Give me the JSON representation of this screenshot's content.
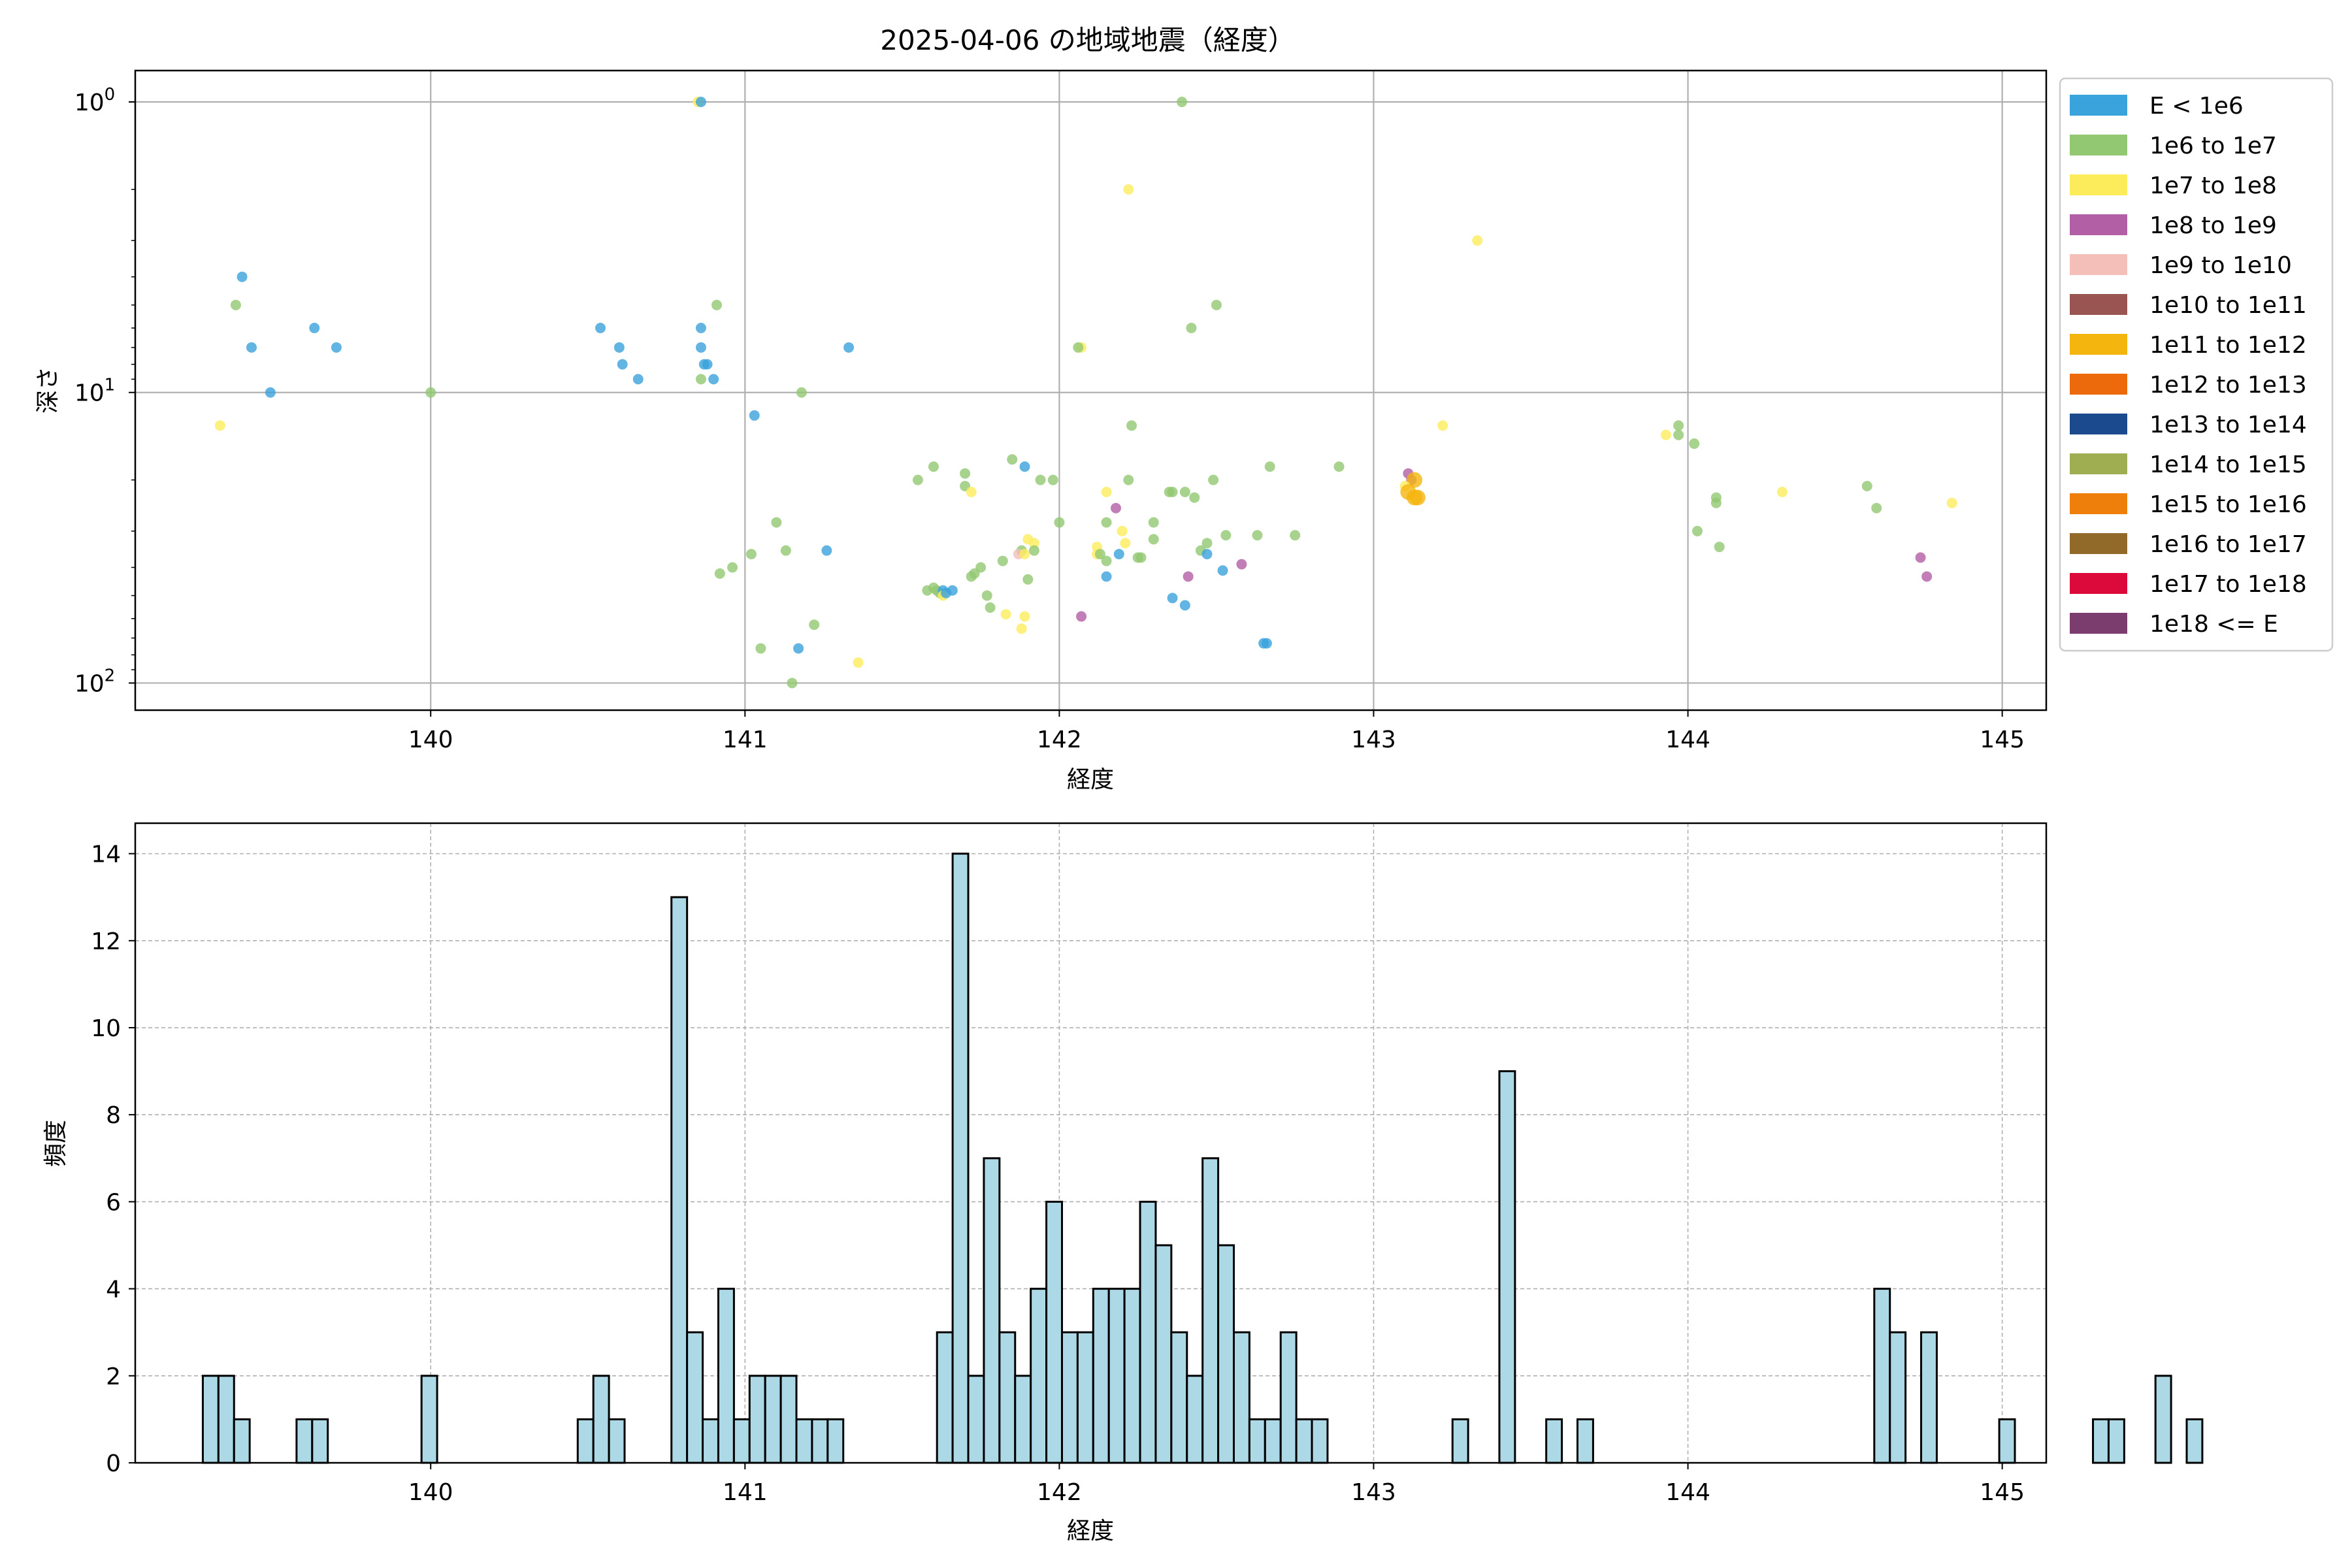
{
  "figure_title": "2025-04-06 の地域地震（経度）",
  "chart_data": [
    {
      "type": "scatter",
      "xlabel": "経度",
      "ylabel": "深さ",
      "xlim": [
        139.06,
        145.14
      ],
      "ylim": [
        124,
        0.78
      ],
      "y_scale": "log",
      "y_inverted": true,
      "x_ticks": [
        140,
        141,
        142,
        143,
        144,
        145
      ],
      "y_ticks": [
        {
          "value": 1,
          "label": "10^0"
        },
        {
          "value": 10,
          "label": "10^1"
        },
        {
          "value": 100,
          "label": "10^2"
        }
      ],
      "grid": true,
      "legend_position": "outside-right",
      "legend": [
        {
          "label": "E < 1e6",
          "color": "#3ba3dc"
        },
        {
          "label": "1e6 to 1e7",
          "color": "#92c872"
        },
        {
          "label": "1e7 to 1e8",
          "color": "#fcec5c"
        },
        {
          "label": "1e8 to 1e9",
          "color": "#b35fa5"
        },
        {
          "label": "1e9 to 1e10",
          "color": "#f3bfb8"
        },
        {
          "label": "1e10 to 1e11",
          "color": "#995552"
        },
        {
          "label": "1e11 to 1e12",
          "color": "#f5b50f"
        },
        {
          "label": "1e12 to 1e13",
          "color": "#ec6a0c"
        },
        {
          "label": "1e13 to 1e14",
          "color": "#1b4a8f"
        },
        {
          "label": "1e14 to 1e15",
          "color": "#9eae51"
        },
        {
          "label": "1e15 to 1e16",
          "color": "#ee7f0a"
        },
        {
          "label": "1e16 to 1e17",
          "color": "#916a2a"
        },
        {
          "label": "1e17 to 1e18",
          "color": "#dc0a3b"
        },
        {
          "label": "1e18 <= E",
          "color": "#7a3d6e"
        }
      ],
      "points": [
        [
          139.33,
          13,
          2
        ],
        [
          139.38,
          5,
          1
        ],
        [
          139.4,
          4,
          0
        ],
        [
          139.43,
          7,
          0
        ],
        [
          139.49,
          10,
          0
        ],
        [
          139.63,
          6,
          0
        ],
        [
          139.7,
          7,
          0
        ],
        [
          140.0,
          10,
          1
        ],
        [
          140.54,
          6,
          0
        ],
        [
          140.6,
          7,
          0
        ],
        [
          140.61,
          8,
          0
        ],
        [
          140.66,
          9,
          0
        ],
        [
          140.85,
          1,
          2
        ],
        [
          140.86,
          1,
          0
        ],
        [
          140.86,
          6,
          0
        ],
        [
          140.86,
          7,
          0
        ],
        [
          140.87,
          8,
          0
        ],
        [
          140.86,
          9,
          1
        ],
        [
          140.88,
          8,
          0
        ],
        [
          140.9,
          9,
          0
        ],
        [
          140.91,
          5,
          1
        ],
        [
          141.03,
          12,
          0
        ],
        [
          141.18,
          10,
          1
        ],
        [
          141.33,
          7,
          0
        ],
        [
          142.22,
          2,
          2
        ],
        [
          142.39,
          1,
          1
        ],
        [
          142.5,
          5,
          1
        ],
        [
          142.42,
          6,
          1
        ],
        [
          142.07,
          7,
          2
        ],
        [
          142.06,
          7,
          1
        ],
        [
          143.33,
          3,
          2
        ],
        [
          142.23,
          13,
          1
        ],
        [
          143.22,
          13,
          2
        ],
        [
          143.97,
          13,
          1
        ],
        [
          143.97,
          14,
          1
        ],
        [
          143.93,
          14,
          2
        ],
        [
          144.02,
          15,
          1
        ],
        [
          144.57,
          21,
          1
        ],
        [
          144.6,
          25,
          1
        ],
        [
          144.09,
          23,
          1
        ],
        [
          144.09,
          24,
          1
        ],
        [
          144.3,
          22,
          2
        ],
        [
          144.84,
          24,
          2
        ],
        [
          143.11,
          19,
          3
        ],
        [
          143.12,
          20,
          3
        ],
        [
          143.13,
          20,
          6
        ],
        [
          143.1,
          21,
          2
        ],
        [
          143.11,
          22,
          6
        ],
        [
          143.13,
          23,
          6
        ],
        [
          143.14,
          23,
          6
        ],
        [
          144.03,
          30,
          1
        ],
        [
          144.1,
          34,
          1
        ],
        [
          144.74,
          37,
          3
        ],
        [
          144.76,
          43,
          3
        ],
        [
          141.55,
          20,
          1
        ],
        [
          141.6,
          18,
          1
        ],
        [
          141.7,
          19,
          1
        ],
        [
          141.7,
          21,
          1
        ],
        [
          141.72,
          22,
          2
        ],
        [
          141.85,
          17,
          1
        ],
        [
          141.89,
          18,
          0
        ],
        [
          141.94,
          20,
          1
        ],
        [
          141.98,
          20,
          1
        ],
        [
          142.0,
          28,
          1
        ],
        [
          142.15,
          22,
          2
        ],
        [
          142.15,
          28,
          1
        ],
        [
          142.22,
          20,
          1
        ],
        [
          142.3,
          28,
          1
        ],
        [
          142.35,
          22,
          1
        ],
        [
          142.36,
          22,
          1
        ],
        [
          142.4,
          22,
          1
        ],
        [
          142.43,
          23,
          1
        ],
        [
          142.49,
          20,
          1
        ],
        [
          142.53,
          31,
          1
        ],
        [
          142.67,
          18,
          1
        ],
        [
          142.63,
          31,
          1
        ],
        [
          142.75,
          31,
          1
        ],
        [
          142.89,
          18,
          1
        ],
        [
          142.18,
          25,
          3
        ],
        [
          142.2,
          30,
          2
        ],
        [
          142.21,
          33,
          2
        ],
        [
          142.26,
          37,
          1
        ],
        [
          142.19,
          36,
          0
        ],
        [
          142.12,
          34,
          2
        ],
        [
          142.12,
          36,
          2
        ],
        [
          142.13,
          36,
          1
        ],
        [
          142.15,
          38,
          1
        ],
        [
          142.15,
          43,
          0
        ],
        [
          142.25,
          37,
          1
        ],
        [
          142.3,
          32,
          1
        ],
        [
          142.36,
          51,
          0
        ],
        [
          142.4,
          54,
          0
        ],
        [
          142.41,
          43,
          3
        ],
        [
          142.45,
          35,
          1
        ],
        [
          142.47,
          33,
          1
        ],
        [
          142.47,
          36,
          0
        ],
        [
          142.52,
          41,
          0
        ],
        [
          142.58,
          39,
          3
        ],
        [
          142.66,
          73,
          0
        ],
        [
          142.65,
          73,
          0
        ],
        [
          142.07,
          59,
          3
        ],
        [
          141.88,
          35,
          1
        ],
        [
          141.9,
          32,
          2
        ],
        [
          141.92,
          33,
          2
        ],
        [
          141.87,
          36,
          4
        ],
        [
          141.89,
          36,
          2
        ],
        [
          141.9,
          44,
          1
        ],
        [
          141.92,
          35,
          1
        ],
        [
          141.82,
          38,
          1
        ],
        [
          141.75,
          40,
          1
        ],
        [
          141.73,
          42,
          1
        ],
        [
          141.72,
          43,
          1
        ],
        [
          141.77,
          50,
          1
        ],
        [
          141.78,
          55,
          1
        ],
        [
          141.83,
          58,
          2
        ],
        [
          141.88,
          65,
          2
        ],
        [
          141.89,
          59,
          2
        ],
        [
          141.61,
          48,
          1
        ],
        [
          141.58,
          48,
          1
        ],
        [
          141.6,
          47,
          1
        ],
        [
          141.62,
          49,
          1
        ],
        [
          141.63,
          48,
          0
        ],
        [
          141.63,
          50,
          2
        ],
        [
          141.64,
          49,
          0
        ],
        [
          141.66,
          48,
          0
        ],
        [
          140.92,
          42,
          1
        ],
        [
          140.96,
          40,
          1
        ],
        [
          141.02,
          36,
          1
        ],
        [
          141.1,
          28,
          1
        ],
        [
          141.13,
          35,
          1
        ],
        [
          141.26,
          35,
          0
        ],
        [
          141.05,
          76,
          1
        ],
        [
          141.17,
          76,
          0
        ],
        [
          141.22,
          63,
          1
        ],
        [
          141.36,
          85,
          2
        ],
        [
          141.15,
          100,
          1
        ]
      ]
    },
    {
      "type": "bar",
      "subtype": "histogram",
      "xlabel": "経度",
      "ylabel": "頻度",
      "xlim": [
        139.06,
        145.14
      ],
      "ylim": [
        0,
        14.7
      ],
      "x_ticks": [
        140,
        141,
        142,
        143,
        144,
        145
      ],
      "y_ticks": [
        0,
        2,
        4,
        6,
        8,
        10,
        12,
        14
      ],
      "grid": true,
      "bar_color": "#add8e6",
      "edge_color": "#000000",
      "bin_start": 139.275,
      "bin_width": 0.0497,
      "counts": [
        2,
        2,
        1,
        0,
        0,
        0,
        1,
        1,
        0,
        0,
        0,
        0,
        0,
        0,
        2,
        0,
        0,
        0,
        0,
        0,
        0,
        0,
        0,
        0,
        1,
        2,
        1,
        0,
        0,
        0,
        13,
        3,
        1,
        4,
        1,
        2,
        2,
        2,
        1,
        1,
        1,
        0,
        0,
        0,
        0,
        0,
        0,
        3,
        14,
        2,
        7,
        3,
        2,
        4,
        6,
        3,
        3,
        4,
        4,
        4,
        6,
        5,
        3,
        2,
        7,
        5,
        3,
        1,
        1,
        3,
        1,
        1,
        0,
        0,
        0,
        0,
        0,
        0,
        0,
        0,
        1,
        0,
        0,
        9,
        0,
        0,
        1,
        0,
        1,
        0,
        0,
        0,
        0,
        0,
        0,
        0,
        0,
        0,
        0,
        0,
        0,
        0,
        0,
        0,
        0,
        0,
        0,
        4,
        3,
        0,
        3,
        0,
        0,
        0,
        0,
        1,
        0,
        0,
        0,
        0,
        0,
        1,
        1,
        0,
        0,
        2,
        0,
        1
      ]
    }
  ]
}
